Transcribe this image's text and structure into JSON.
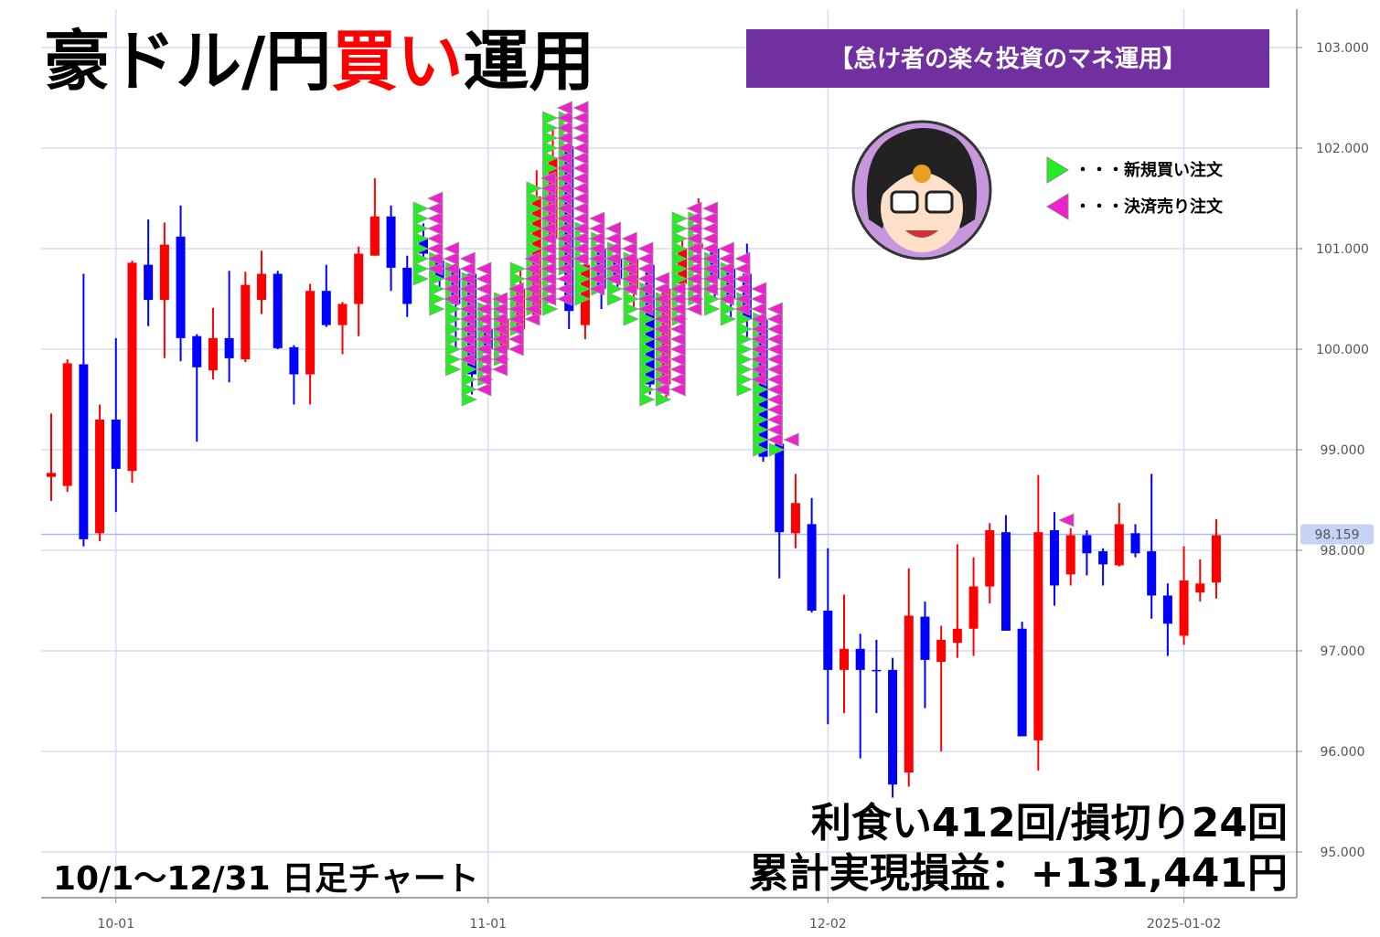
{
  "chart_data": {
    "type": "candlestick",
    "title_parts": [
      "豪ドル/円",
      "買い",
      "運用"
    ],
    "banner": "【怠け者の楽々投資のマネ運用】",
    "legend": [
      {
        "name": "・・・新規買い注文",
        "color": "#22ee22"
      },
      {
        "name": "・・・決済売り注文",
        "color": "#ee22cc"
      }
    ],
    "annotations": [
      "利食い412回/損切り24回",
      "累計実現損益：+131,441円",
      "10/1～12/31  日足チャート"
    ],
    "up_color": "#ff0000",
    "down_color": "#0000ff",
    "categories": [
      null,
      null,
      null,
      null,
      "10-01",
      null,
      null,
      null,
      null,
      null,
      null,
      null,
      null,
      null,
      null,
      null,
      null,
      null,
      null,
      null,
      null,
      null,
      null,
      null,
      null,
      null,
      null,
      "11-01",
      null,
      null,
      null,
      null,
      null,
      null,
      null,
      null,
      null,
      null,
      null,
      null,
      null,
      null,
      null,
      null,
      null,
      null,
      null,
      null,
      "12-02",
      null,
      null,
      null,
      null,
      null,
      null,
      null,
      null,
      null,
      null,
      null,
      null,
      null,
      null,
      null,
      null,
      null,
      null,
      null,
      null,
      null,
      "2025-01-02",
      null,
      null
    ],
    "open": [
      98.73,
      98.64,
      99.85,
      98.17,
      99.3,
      98.79,
      100.84,
      100.49,
      101.12,
      100.13,
      99.79,
      100.11,
      99.9,
      100.49,
      100.75,
      100.02,
      99.75,
      100.58,
      100.24,
      100.45,
      100.93,
      101.32,
      100.81,
      101.11,
      100.88,
      100.8,
      100.75,
      100.2,
      100.0,
      100.2,
      100.34,
      101.1,
      102.02,
      100.24,
      101.0,
      100.9,
      100.6,
      100.84,
      99.65,
      100.65,
      101.0,
      101.0,
      100.8,
      100.75,
      100.29,
      99.06,
      98.17,
      98.26,
      97.4,
      96.81,
      97.02,
      96.81,
      96.81,
      95.79,
      97.34,
      96.89,
      97.08,
      97.22,
      97.64,
      98.18,
      97.22,
      96.11,
      98.2,
      97.76,
      98.15,
      97.99,
      97.85,
      98.17,
      97.99,
      97.55,
      97.15,
      97.58,
      97.68
    ],
    "high": [
      99.36,
      99.9,
      100.75,
      99.45,
      100.11,
      100.88,
      101.29,
      101.26,
      101.43,
      100.15,
      100.41,
      100.78,
      100.77,
      100.98,
      100.78,
      100.04,
      100.65,
      100.84,
      100.47,
      101.02,
      101.7,
      101.43,
      100.93,
      101.25,
      100.98,
      100.9,
      100.84,
      100.4,
      100.5,
      100.8,
      101.78,
      102.2,
      102.06,
      101.0,
      101.2,
      101.1,
      101.0,
      100.95,
      100.7,
      101.1,
      101.5,
      101.2,
      100.9,
      101.05,
      100.34,
      99.25,
      98.76,
      98.52,
      98.02,
      97.56,
      97.17,
      97.11,
      96.93,
      97.82,
      97.49,
      97.25,
      98.06,
      97.93,
      98.27,
      98.35,
      97.29,
      98.75,
      98.38,
      98.22,
      98.2,
      98.02,
      98.47,
      98.26,
      98.76,
      97.67,
      98.04,
      97.91,
      98.31
    ],
    "low": [
      98.49,
      98.58,
      98.04,
      98.09,
      98.38,
      98.67,
      100.23,
      99.91,
      99.88,
      99.08,
      99.7,
      99.67,
      99.87,
      100.35,
      100.0,
      99.45,
      99.45,
      100.22,
      99.95,
      100.13,
      100.93,
      100.58,
      100.32,
      100.91,
      100.62,
      100.0,
      99.55,
      99.8,
      99.9,
      100.0,
      100.3,
      101.0,
      100.2,
      100.1,
      100.4,
      100.6,
      100.4,
      99.55,
      99.5,
      100.5,
      100.9,
      100.5,
      100.3,
      100.1,
      98.88,
      97.72,
      98.02,
      97.38,
      96.27,
      96.38,
      95.93,
      96.38,
      95.54,
      95.65,
      96.43,
      96.0,
      96.93,
      96.95,
      97.47,
      97.2,
      96.15,
      95.81,
      97.45,
      97.65,
      97.75,
      97.65,
      97.84,
      97.93,
      97.32,
      96.95,
      97.06,
      97.49,
      97.52
    ],
    "close": [
      98.77,
      99.86,
      98.11,
      99.3,
      98.81,
      100.86,
      100.49,
      101.04,
      100.11,
      99.82,
      100.11,
      99.91,
      100.64,
      100.75,
      100.01,
      99.75,
      100.58,
      100.24,
      100.45,
      100.95,
      101.32,
      100.81,
      100.45,
      100.95,
      100.7,
      100.45,
      99.75,
      100.0,
      100.3,
      100.6,
      101.52,
      101.9,
      100.38,
      100.84,
      100.6,
      100.7,
      100.9,
      99.65,
      100.6,
      101.0,
      101.05,
      100.7,
      100.5,
      100.3,
      98.93,
      98.18,
      98.47,
      97.4,
      96.81,
      97.02,
      96.81,
      96.8,
      95.67,
      97.35,
      96.91,
      97.11,
      97.22,
      97.64,
      98.2,
      97.2,
      96.15,
      98.18,
      97.65,
      98.15,
      97.97,
      97.86,
      98.26,
      97.97,
      97.55,
      97.27,
      97.7,
      97.67,
      98.15
    ],
    "buy_orders": [
      [],
      [],
      [],
      [],
      [],
      [],
      [],
      [],
      [],
      [],
      [],
      [],
      [],
      [],
      [],
      [],
      [],
      [],
      [],
      [],
      [],
      [],
      [],
      [
        100.7,
        100.8,
        100.9,
        101.0,
        101.1,
        101.2,
        101.3,
        101.4
      ],
      [
        100.4,
        100.5,
        100.6,
        100.7,
        100.8,
        100.9
      ],
      [
        99.8,
        99.9,
        100.0,
        100.1,
        100.2,
        100.3,
        100.4,
        100.5,
        100.6,
        100.7,
        100.8
      ],
      [
        99.5,
        99.6,
        99.7,
        99.8,
        99.9,
        100.0,
        100.1,
        100.2,
        100.3,
        100.4,
        100.5,
        100.6,
        100.7
      ],
      [
        99.7,
        99.8,
        99.9,
        100.0,
        100.1,
        100.2,
        100.3,
        100.4
      ],
      [
        99.9,
        100.0,
        100.1,
        100.2,
        100.3,
        100.4,
        100.5
      ],
      [
        100.2,
        100.3,
        100.4,
        100.5,
        100.6,
        100.7,
        100.8
      ],
      [
        100.4,
        100.5,
        100.6,
        100.7,
        100.8,
        100.9,
        101.0,
        101.1,
        101.2,
        101.3,
        101.4,
        101.5,
        101.6
      ],
      [
        100.4,
        100.5,
        100.6,
        100.7,
        100.8,
        100.9,
        101.0,
        101.1,
        101.2,
        101.3,
        101.4,
        101.5,
        101.6,
        101.7,
        101.8,
        101.9,
        102.0,
        102.1,
        102.2,
        102.3
      ],
      [
        100.8,
        100.9,
        101.0,
        101.1,
        101.2,
        101.3,
        101.4,
        101.5,
        101.6,
        101.7,
        101.8,
        101.9,
        102.0,
        102.1,
        102.2,
        102.3
      ],
      [
        100.5,
        100.6,
        100.7,
        100.8,
        100.9,
        101.0,
        101.1,
        101.2
      ],
      [
        100.6,
        100.7,
        100.8,
        100.9,
        101.0,
        101.1
      ],
      [
        100.5,
        100.6,
        100.7,
        100.8,
        100.9,
        101.0
      ],
      [
        100.3,
        100.4,
        100.5,
        100.6,
        100.7,
        100.8,
        100.9
      ],
      [
        99.5,
        99.6,
        99.7,
        99.8,
        99.9,
        100.0,
        100.1,
        100.2,
        100.3,
        100.4,
        100.5,
        100.6
      ],
      [
        99.5,
        99.6,
        99.7,
        99.8,
        99.9,
        100.0,
        100.1,
        100.2,
        100.3,
        100.4,
        100.5
      ],
      [
        100.3,
        100.4,
        100.5,
        100.6,
        100.7,
        100.8,
        100.9,
        101.0,
        101.1,
        101.2,
        101.3
      ],
      [
        100.5,
        100.6,
        100.7,
        100.8,
        100.9,
        101.0,
        101.1,
        101.2,
        101.3
      ],
      [
        100.4,
        100.5,
        100.6,
        100.7,
        100.8,
        100.9
      ],
      [
        100.3,
        100.4,
        100.5,
        100.6,
        100.7,
        100.8
      ],
      [
        99.6,
        99.7,
        99.8,
        99.9,
        100.0,
        100.1,
        100.2,
        100.3,
        100.4,
        100.5
      ],
      [
        99.0,
        99.1,
        99.2,
        99.3,
        99.4,
        99.5,
        99.6,
        99.7,
        99.8,
        99.9,
        100.0,
        100.1,
        100.2,
        100.3
      ],
      [
        99.0
      ],
      [],
      [],
      [],
      [],
      [],
      [],
      [],
      [],
      [],
      [],
      [],
      [],
      [],
      [],
      [],
      [],
      [],
      [],
      [],
      [],
      [],
      [],
      [],
      [],
      [],
      [],
      []
    ],
    "sell_orders": [
      [],
      [],
      [],
      [],
      [],
      [],
      [],
      [],
      [],
      [],
      [],
      [],
      [],
      [],
      [],
      [],
      [],
      [],
      [],
      [],
      [],
      [],
      [],
      [
        100.8,
        100.9,
        101.0,
        101.1,
        101.2,
        101.3,
        101.4,
        101.5
      ],
      [
        100.5,
        100.6,
        100.7,
        100.8,
        100.9,
        101.0
      ],
      [
        99.9,
        100.0,
        100.1,
        100.2,
        100.3,
        100.4,
        100.5,
        100.6,
        100.7,
        100.8,
        100.9
      ],
      [
        99.6,
        99.7,
        99.8,
        99.9,
        100.0,
        100.1,
        100.2,
        100.3,
        100.4,
        100.5,
        100.6,
        100.7,
        100.8
      ],
      [
        99.8,
        99.9,
        100.0,
        100.1,
        100.2,
        100.3,
        100.4,
        100.5
      ],
      [
        100.0,
        100.1,
        100.2,
        100.3,
        100.4,
        100.5,
        100.6
      ],
      [
        100.3,
        100.4,
        100.5,
        100.6,
        100.7,
        100.8,
        100.9
      ],
      [
        100.5,
        100.6,
        100.7,
        100.8,
        100.9,
        101.0,
        101.1,
        101.2,
        101.3,
        101.4,
        101.5,
        101.6,
        101.7
      ],
      [
        100.5,
        100.6,
        100.7,
        100.8,
        100.9,
        101.0,
        101.1,
        101.2,
        101.3,
        101.4,
        101.5,
        101.6,
        101.7,
        101.8,
        101.9,
        102.0,
        102.1,
        102.2,
        102.3,
        102.4
      ],
      [
        100.9,
        101.0,
        101.1,
        101.2,
        101.3,
        101.4,
        101.5,
        101.6,
        101.7,
        101.8,
        101.9,
        102.0,
        102.1,
        102.2,
        102.3,
        102.4
      ],
      [
        100.6,
        100.7,
        100.8,
        100.9,
        101.0,
        101.1,
        101.2,
        101.3
      ],
      [
        100.7,
        100.8,
        100.9,
        101.0,
        101.1,
        101.2
      ],
      [
        100.6,
        100.7,
        100.8,
        100.9,
        101.0,
        101.1
      ],
      [
        100.4,
        100.5,
        100.6,
        100.7,
        100.8,
        100.9,
        101.0
      ],
      [
        99.6,
        99.7,
        99.8,
        99.9,
        100.0,
        100.1,
        100.2,
        100.3,
        100.4,
        100.5,
        100.6,
        100.7
      ],
      [
        99.6,
        99.7,
        99.8,
        99.9,
        100.0,
        100.1,
        100.2,
        100.3,
        100.4,
        100.5,
        100.6
      ],
      [
        100.4,
        100.5,
        100.6,
        100.7,
        100.8,
        100.9,
        101.0,
        101.1,
        101.2,
        101.3,
        101.4
      ],
      [
        100.6,
        100.7,
        100.8,
        100.9,
        101.0,
        101.1,
        101.2,
        101.3,
        101.4
      ],
      [
        100.5,
        100.6,
        100.7,
        100.8,
        100.9,
        101.0
      ],
      [
        100.4,
        100.5,
        100.6,
        100.7,
        100.8,
        100.9
      ],
      [
        99.7,
        99.8,
        99.9,
        100.0,
        100.1,
        100.2,
        100.3,
        100.4,
        100.5,
        100.6
      ],
      [
        99.1,
        99.2,
        99.3,
        99.4,
        99.5,
        99.6,
        99.7,
        99.8,
        99.9,
        100.0,
        100.1,
        100.2,
        100.3,
        100.4
      ],
      [
        99.1
      ],
      [],
      [],
      [],
      [],
      [],
      [],
      [],
      [],
      [],
      [],
      [],
      [],
      [],
      [],
      [],
      [],
      [
        98.3
      ],
      [],
      [],
      [],
      [],
      [],
      [],
      [],
      [],
      [],
      []
    ],
    "last_price": 98.159,
    "ylim": [
      94.545,
      103.382
    ],
    "yticks": [
      {
        "value": 95,
        "label": "95.000"
      },
      {
        "value": 96,
        "label": "96.000"
      },
      {
        "value": 97,
        "label": "97.000"
      },
      {
        "value": 98,
        "label": "98.000"
      },
      {
        "value": 99,
        "label": "99.000"
      },
      {
        "value": 100,
        "label": "100.000"
      },
      {
        "value": 101,
        "label": "101.000"
      },
      {
        "value": 102,
        "label": "102.000"
      },
      {
        "value": 103,
        "label": "103.000"
      }
    ],
    "grid": true
  }
}
